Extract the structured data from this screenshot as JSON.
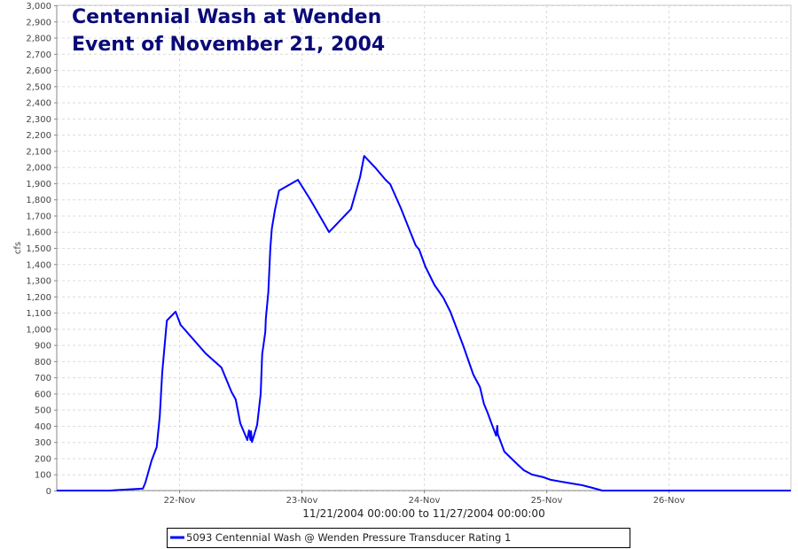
{
  "chart_data": {
    "type": "line",
    "title": [
      "Centennial Wash at Wenden",
      "Event of November 21, 2004"
    ],
    "xlabel": "11/21/2004 00:00:00 to 11/27/2004 00:00:00",
    "ylabel": "cfs",
    "x_unit": "hours since 11/21/2004 00:00",
    "xlim": [
      0,
      144
    ],
    "ylim": [
      0,
      3000
    ],
    "y_tick_step": 100,
    "x_ticks": [
      {
        "h": 24,
        "label": "22-Nov"
      },
      {
        "h": 48,
        "label": "23-Nov"
      },
      {
        "h": 72,
        "label": "24-Nov"
      },
      {
        "h": 96,
        "label": "25-Nov"
      },
      {
        "h": 120,
        "label": "26-Nov"
      }
    ],
    "grid": true,
    "legend_placement": "bottom",
    "series": [
      {
        "name": "5093 Centennial Wash @ Wenden Pressure Transducer Rating 1",
        "color": "#0000ff",
        "points": [
          [
            0,
            0
          ],
          [
            10.4,
            0
          ],
          [
            16.9,
            12
          ],
          [
            17.4,
            50
          ],
          [
            18.6,
            186
          ],
          [
            19.6,
            268
          ],
          [
            20.2,
            460
          ],
          [
            20.7,
            733
          ],
          [
            21.6,
            1051
          ],
          [
            23.3,
            1106
          ],
          [
            24.3,
            1024
          ],
          [
            29.2,
            848
          ],
          [
            32.3,
            761
          ],
          [
            34.3,
            608
          ],
          [
            35.1,
            564
          ],
          [
            36.0,
            416
          ],
          [
            37.4,
            312
          ],
          [
            37.7,
            372
          ],
          [
            38.0,
            312
          ],
          [
            38.1,
            367
          ],
          [
            38.3,
            300
          ],
          [
            39.3,
            405
          ],
          [
            40.0,
            597
          ],
          [
            40.3,
            843
          ],
          [
            40.9,
            980
          ],
          [
            41.0,
            1062
          ],
          [
            41.5,
            1226
          ],
          [
            41.9,
            1500
          ],
          [
            42.2,
            1620
          ],
          [
            42.8,
            1735
          ],
          [
            43.6,
            1855
          ],
          [
            47.3,
            1921
          ],
          [
            49.6,
            1806
          ],
          [
            52.2,
            1664
          ],
          [
            53.4,
            1598
          ],
          [
            57.7,
            1740
          ],
          [
            58.8,
            1861
          ],
          [
            59.5,
            1938
          ],
          [
            60.3,
            2069
          ],
          [
            62.6,
            1992
          ],
          [
            64.5,
            1921
          ],
          [
            65.4,
            1894
          ],
          [
            67.5,
            1746
          ],
          [
            70.4,
            1516
          ],
          [
            71.1,
            1489
          ],
          [
            72.3,
            1385
          ],
          [
            74.1,
            1270
          ],
          [
            75.8,
            1193
          ],
          [
            77.2,
            1106
          ],
          [
            79.7,
            898
          ],
          [
            81.7,
            717
          ],
          [
            83.0,
            640
          ],
          [
            83.8,
            536
          ],
          [
            84.5,
            482
          ],
          [
            85.4,
            405
          ],
          [
            86.2,
            339
          ],
          [
            86.4,
            400
          ],
          [
            86.5,
            350
          ],
          [
            87.8,
            241
          ],
          [
            90.3,
            164
          ],
          [
            91.6,
            126
          ],
          [
            93.2,
            99
          ],
          [
            95.5,
            82
          ],
          [
            96.9,
            66
          ],
          [
            100.0,
            49
          ],
          [
            103.1,
            33
          ],
          [
            105.2,
            16
          ],
          [
            107.0,
            0
          ],
          [
            144,
            0
          ]
        ]
      }
    ]
  }
}
